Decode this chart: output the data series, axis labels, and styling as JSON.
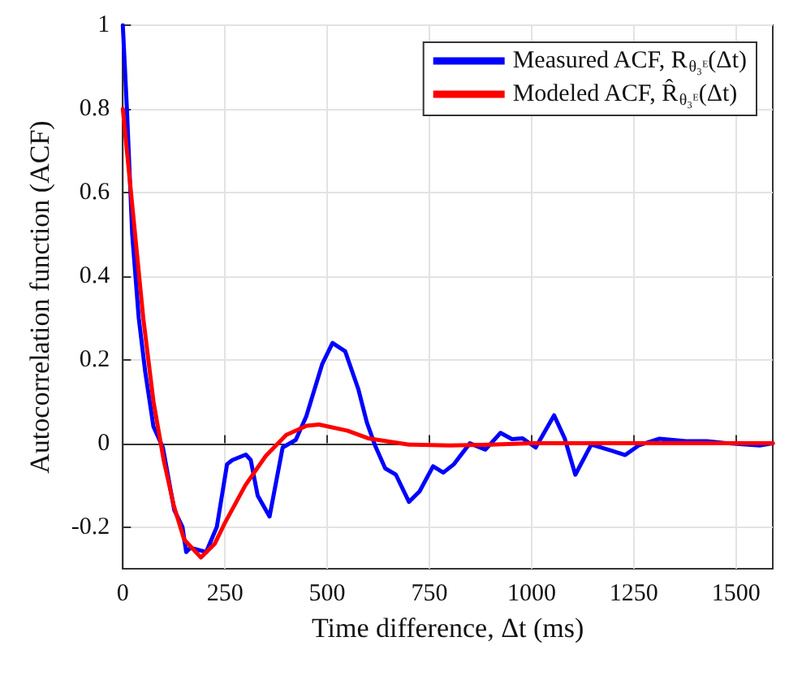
{
  "chart_data": {
    "type": "line",
    "xlabel": "Time difference, Δt (ms)",
    "ylabel": "Autocorrelation function (ACF)",
    "xlim": [
      0,
      1590
    ],
    "ylim": [
      -0.3,
      1
    ],
    "xticks": [
      0,
      250,
      500,
      750,
      1000,
      1250,
      1500
    ],
    "yticks": [
      -0.2,
      0,
      0.2,
      0.4,
      0.6,
      0.8,
      1
    ],
    "grid": true,
    "legend": "top right",
    "marker": "none",
    "line_style": "solid",
    "series": [
      {
        "name": "Measured ACF, R$_{θ₃ᴱ}$(Δt)",
        "color": "#0000ff",
        "x": [
          0,
          10,
          23,
          39,
          55,
          75,
          98,
          126,
          146,
          155,
          165,
          204,
          230,
          255,
          268,
          301,
          313,
          330,
          359,
          391,
          423,
          449,
          488,
          513,
          544,
          576,
          597,
          617,
          642,
          668,
          700,
          726,
          759,
          784,
          810,
          849,
          887,
          924,
          952,
          978,
          1010,
          1055,
          1081,
          1107,
          1146,
          1197,
          1229,
          1262,
          1313,
          1378,
          1429,
          1481,
          1558,
          1590
        ],
        "values": [
          1.0,
          0.8,
          0.5,
          0.3,
          0.17,
          0.04,
          -0.01,
          -0.16,
          -0.2,
          -0.26,
          -0.25,
          -0.26,
          -0.2,
          -0.05,
          -0.04,
          -0.027,
          -0.04,
          -0.125,
          -0.175,
          -0.01,
          0.008,
          0.065,
          0.19,
          0.24,
          0.22,
          0.13,
          0.05,
          -0.005,
          -0.06,
          -0.075,
          -0.14,
          -0.115,
          -0.055,
          -0.07,
          -0.05,
          0.0,
          -0.015,
          0.025,
          0.01,
          0.012,
          -0.01,
          0.067,
          0.012,
          -0.075,
          -0.003,
          -0.018,
          -0.028,
          -0.005,
          0.011,
          0.005,
          0.005,
          0.0,
          -0.005,
          0.0
        ]
      },
      {
        "name": "Modeled ACF, R̂$_{θ₃ᴱ}$(Δt)",
        "color": "#ff0000",
        "x": [
          0,
          25,
          50,
          75,
          100,
          125,
          150,
          191,
          225,
          250,
          300,
          350,
          400,
          450,
          480,
          550,
          600,
          700,
          800,
          900,
          1000,
          1590
        ],
        "values": [
          0.8,
          0.55,
          0.3,
          0.1,
          -0.04,
          -0.15,
          -0.23,
          -0.273,
          -0.24,
          -0.19,
          -0.1,
          -0.03,
          0.02,
          0.042,
          0.045,
          0.03,
          0.012,
          -0.003,
          -0.005,
          -0.003,
          0.0,
          0.0
        ]
      }
    ]
  }
}
